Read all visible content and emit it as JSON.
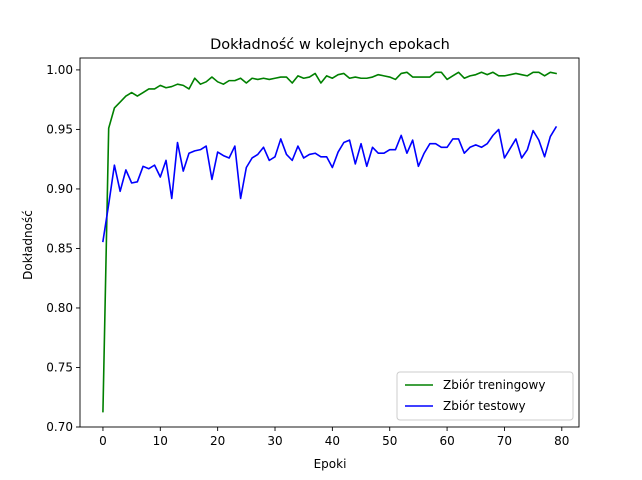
{
  "chart_data": {
    "type": "line",
    "title": "Dokładność w kolejnych epokach",
    "xlabel": "Epoki",
    "ylabel": "Dokładność",
    "xlim": [
      -4,
      83
    ],
    "ylim": [
      0.7,
      1.01
    ],
    "xticks": [
      0,
      10,
      20,
      30,
      40,
      50,
      60,
      70,
      80
    ],
    "yticks": [
      0.7,
      0.75,
      0.8,
      0.85,
      0.9,
      0.95,
      1.0
    ],
    "ytick_labels": [
      "0.70",
      "0.75",
      "0.80",
      "0.85",
      "0.90",
      "0.95",
      "1.00"
    ],
    "grid": false,
    "legend_position": "lower-right",
    "x": [
      0,
      1,
      2,
      3,
      4,
      5,
      6,
      7,
      8,
      9,
      10,
      11,
      12,
      13,
      14,
      15,
      16,
      17,
      18,
      19,
      20,
      21,
      22,
      23,
      24,
      25,
      26,
      27,
      28,
      29,
      30,
      31,
      32,
      33,
      34,
      35,
      36,
      37,
      38,
      39,
      40,
      41,
      42,
      43,
      44,
      45,
      46,
      47,
      48,
      49,
      50,
      51,
      52,
      53,
      54,
      55,
      56,
      57,
      58,
      59,
      60,
      61,
      62,
      63,
      64,
      65,
      66,
      67,
      68,
      69,
      70,
      71,
      72,
      73,
      74,
      75,
      76,
      77,
      78,
      79
    ],
    "series": [
      {
        "name": "Zbiór treningowy",
        "color": "#008000",
        "values": [
          0.713,
          0.951,
          0.968,
          0.973,
          0.978,
          0.981,
          0.978,
          0.981,
          0.984,
          0.984,
          0.987,
          0.985,
          0.986,
          0.988,
          0.987,
          0.984,
          0.993,
          0.988,
          0.99,
          0.994,
          0.99,
          0.988,
          0.991,
          0.991,
          0.993,
          0.989,
          0.993,
          0.992,
          0.993,
          0.992,
          0.993,
          0.994,
          0.994,
          0.989,
          0.995,
          0.993,
          0.994,
          0.997,
          0.989,
          0.995,
          0.993,
          0.996,
          0.997,
          0.993,
          0.994,
          0.993,
          0.993,
          0.994,
          0.996,
          0.995,
          0.994,
          0.992,
          0.997,
          0.998,
          0.994,
          0.994,
          0.994,
          0.994,
          0.998,
          0.998,
          0.992,
          0.995,
          0.998,
          0.993,
          0.995,
          0.996,
          0.998,
          0.996,
          0.998,
          0.995,
          0.995,
          0.996,
          0.997,
          0.996,
          0.995,
          0.998,
          0.998,
          0.995,
          0.998,
          0.997
        ]
      },
      {
        "name": "Zbiór testowy",
        "color": "#0000ff",
        "values": [
          0.856,
          0.887,
          0.92,
          0.898,
          0.916,
          0.905,
          0.906,
          0.919,
          0.917,
          0.92,
          0.91,
          0.924,
          0.892,
          0.939,
          0.915,
          0.93,
          0.932,
          0.933,
          0.936,
          0.908,
          0.931,
          0.928,
          0.926,
          0.936,
          0.892,
          0.918,
          0.926,
          0.929,
          0.935,
          0.924,
          0.927,
          0.942,
          0.929,
          0.924,
          0.936,
          0.926,
          0.929,
          0.93,
          0.927,
          0.927,
          0.918,
          0.931,
          0.939,
          0.941,
          0.921,
          0.938,
          0.919,
          0.935,
          0.93,
          0.93,
          0.933,
          0.933,
          0.945,
          0.93,
          0.941,
          0.919,
          0.93,
          0.938,
          0.938,
          0.935,
          0.935,
          0.942,
          0.942,
          0.93,
          0.935,
          0.937,
          0.935,
          0.938,
          0.945,
          0.95,
          0.926,
          0.934,
          0.942,
          0.926,
          0.933,
          0.949,
          0.941,
          0.927,
          0.944,
          0.952
        ]
      }
    ]
  }
}
